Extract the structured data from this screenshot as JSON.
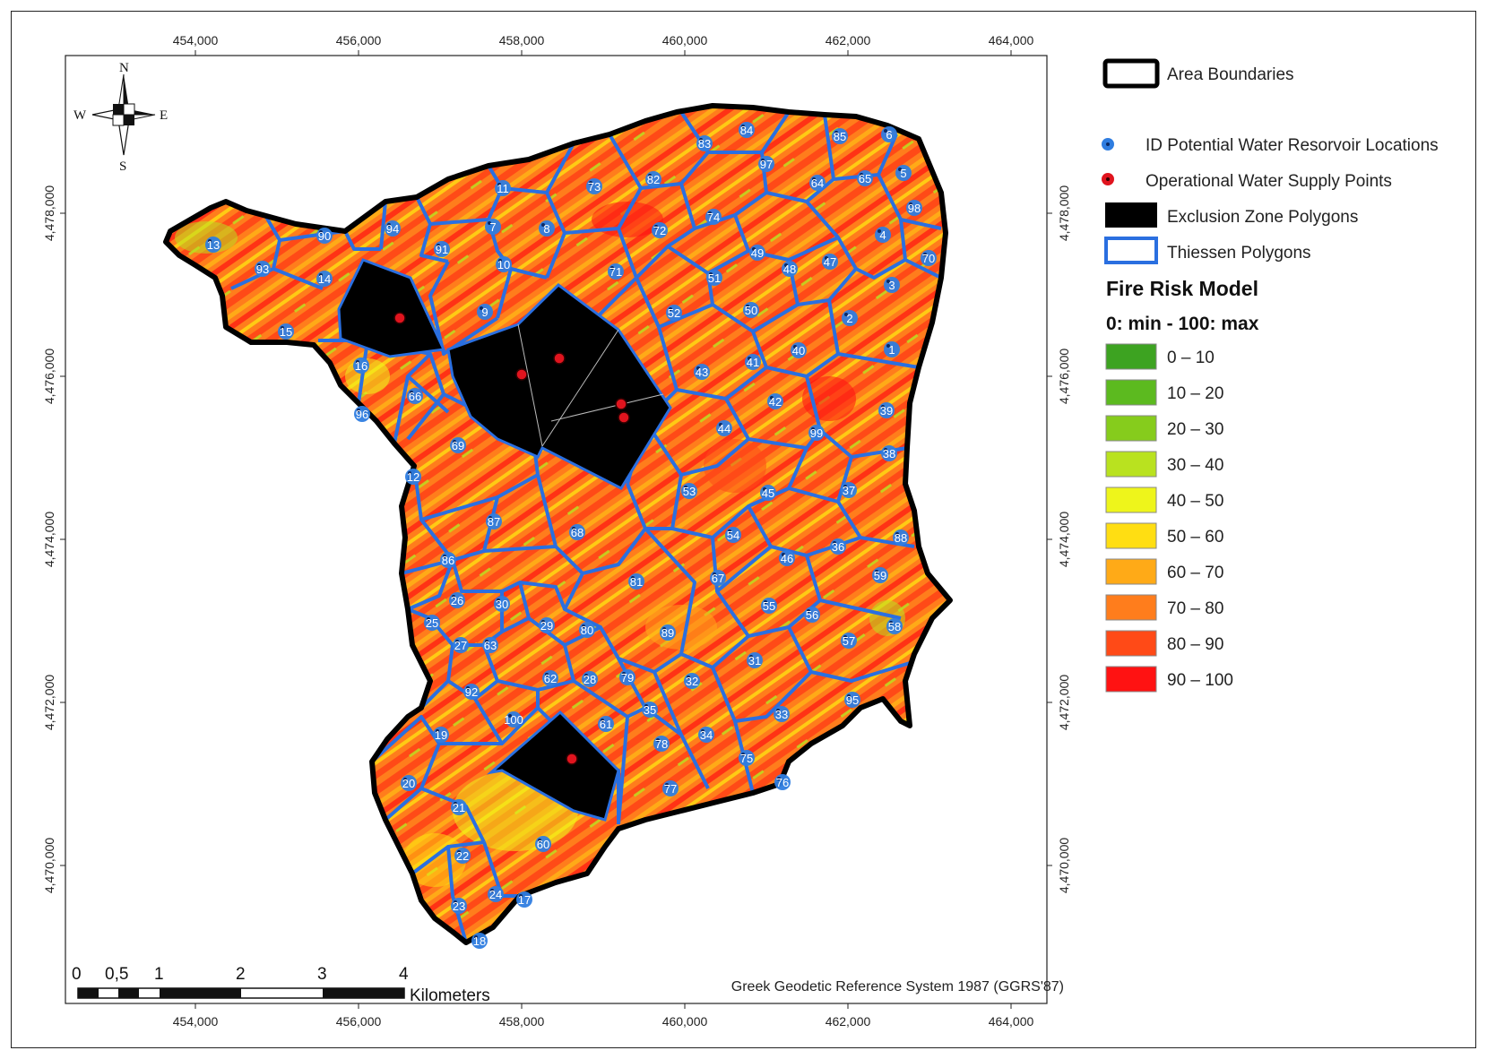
{
  "axes": {
    "x_ticks": [
      "454,000",
      "456,000",
      "458,000",
      "460,000",
      "462,000",
      "464,000"
    ],
    "y_ticks": [
      "4,478,000",
      "4,476,000",
      "4,474,000",
      "4,472,000",
      "4,470,000"
    ]
  },
  "compass": {
    "n": "N",
    "s": "S",
    "e": "E",
    "w": "W"
  },
  "scale_bar": {
    "labels": [
      "0",
      "0,5",
      "1",
      "2",
      "3",
      "4"
    ],
    "unit": "Kilometers"
  },
  "crs": "Greek Geodetic Reference System 1987 (GGRS'87)",
  "legend": {
    "items": [
      {
        "label": "Area Boundaries",
        "symbol": "area-boundary"
      },
      {
        "label": "ID Potential Water Resorvoir Locations",
        "symbol": "blue-dot",
        "color": "#2f7de0"
      },
      {
        "label": "Operational Water Supply Points",
        "symbol": "red-dot",
        "color": "#e0141e"
      },
      {
        "label": "Exclusion Zone Polygons",
        "symbol": "black-fill"
      },
      {
        "label": "Thiessen Polygons",
        "symbol": "blue-outline",
        "color": "#2a6fe0"
      }
    ],
    "fire_risk_title": "Fire Risk Model",
    "fire_risk_subtitle": "0: min - 100: max",
    "classes": [
      {
        "label": "0 – 10",
        "color": "#3da321"
      },
      {
        "label": "10 – 20",
        "color": "#5cba1f"
      },
      {
        "label": "20 – 30",
        "color": "#86cc1c"
      },
      {
        "label": "30 – 40",
        "color": "#b9e21f"
      },
      {
        "label": "40 – 50",
        "color": "#eef51b"
      },
      {
        "label": "50 – 60",
        "color": "#ffde12"
      },
      {
        "label": "60 – 70",
        "color": "#ffaa17"
      },
      {
        "label": "70 – 80",
        "color": "#ff7d1c"
      },
      {
        "label": "80 – 90",
        "color": "#ff4a17"
      },
      {
        "label": "90 – 100",
        "color": "#ff1212"
      }
    ]
  },
  "reservoir_ids": [
    "1",
    "2",
    "3",
    "4",
    "5",
    "6",
    "7",
    "8",
    "9",
    "10",
    "11",
    "12",
    "13",
    "14",
    "15",
    "16",
    "17",
    "18",
    "19",
    "20",
    "21",
    "22",
    "23",
    "24",
    "25",
    "26",
    "27",
    "28",
    "29",
    "30",
    "31",
    "32",
    "33",
    "34",
    "35",
    "36",
    "37",
    "38",
    "39",
    "40",
    "41",
    "42",
    "43",
    "44",
    "45",
    "46",
    "47",
    "48",
    "49",
    "50",
    "51",
    "52",
    "53",
    "54",
    "55",
    "56",
    "57",
    "58",
    "59",
    "60",
    "61",
    "62",
    "63",
    "64",
    "65",
    "66",
    "67",
    "68",
    "69",
    "70",
    "71",
    "72",
    "73",
    "74",
    "75",
    "76",
    "77",
    "78",
    "79",
    "80",
    "81",
    "82",
    "83",
    "84",
    "85",
    "86",
    "87",
    "88",
    "89",
    "90",
    "91",
    "92",
    "93",
    "94",
    "95",
    "96",
    "97",
    "98",
    "99",
    "100"
  ],
  "colors": {
    "boundary": "#000000",
    "thiessen": "#2a6fe0",
    "reservoir_point": "#2f7de0",
    "supply_point": "#e0141e",
    "exclusion": "#000000"
  }
}
